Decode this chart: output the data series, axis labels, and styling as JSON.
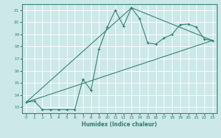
{
  "xlabel": "Humidex (Indice chaleur)",
  "bg_color": "#cce8e8",
  "grid_color": "#ffffff",
  "line_color": "#2e7d6e",
  "xlim": [
    -0.5,
    23.5
  ],
  "ylim": [
    12.5,
    21.5
  ],
  "yticks": [
    13,
    14,
    15,
    16,
    17,
    18,
    19,
    20,
    21
  ],
  "xticks": [
    0,
    1,
    2,
    3,
    4,
    5,
    6,
    7,
    8,
    9,
    10,
    11,
    12,
    13,
    14,
    15,
    16,
    17,
    18,
    19,
    20,
    21,
    22,
    23
  ],
  "series1_x": [
    0,
    1,
    2,
    3,
    4,
    5,
    6,
    7,
    8,
    9,
    10,
    11,
    12,
    13,
    14,
    15,
    16,
    17,
    18,
    19,
    20,
    21,
    22,
    23
  ],
  "series1_y": [
    13.4,
    13.5,
    12.8,
    12.8,
    12.8,
    12.8,
    12.8,
    15.3,
    14.4,
    17.8,
    19.6,
    21.0,
    19.7,
    21.2,
    20.3,
    18.3,
    18.2,
    18.7,
    19.0,
    19.8,
    19.85,
    19.6,
    18.6,
    18.5
  ],
  "series2_x": [
    0,
    23
  ],
  "series2_y": [
    13.4,
    18.5
  ],
  "series3_x": [
    0,
    13,
    23
  ],
  "series3_y": [
    13.4,
    21.2,
    18.5
  ]
}
